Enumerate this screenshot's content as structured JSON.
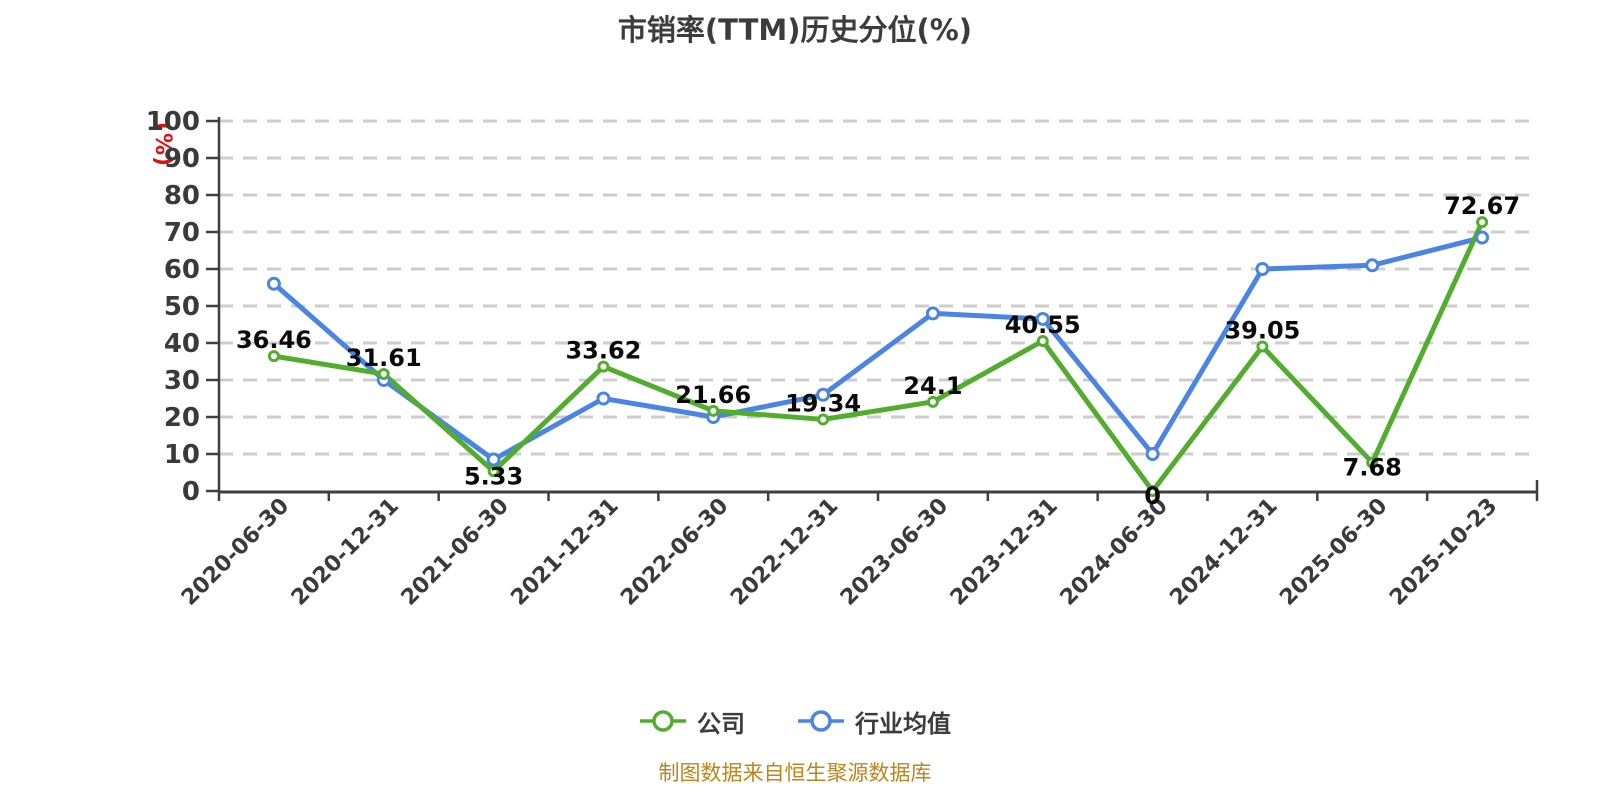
{
  "title": "市销率(TTM)历史分位(%)",
  "footer_note": "制图数据来自恒生聚源数据库",
  "colors": {
    "company": "#52ad2e",
    "industry": "#4a85e2",
    "y_unit_label": "#dd1111",
    "axis": "#3f3f3f",
    "grid": "#cdcdcd",
    "tick_text": "#3a3a3a",
    "data_label": "#0a0a0a",
    "footer": "#bc861b",
    "title_text": "#3c3c3c",
    "background": "#ffffff"
  },
  "chart_data": {
    "type": "line",
    "title": "市销率(TTM)历史分位(%)",
    "xlabel": "",
    "ylabel": "(%)",
    "ylim": [
      0,
      100
    ],
    "y_ticks": [
      0,
      10,
      20,
      30,
      40,
      50,
      60,
      70,
      80,
      90,
      100
    ],
    "grid": "horizontal-dashed",
    "legend_position": "bottom",
    "categories": [
      "2020-06-30",
      "2020-12-31",
      "2021-06-30",
      "2021-12-31",
      "2022-06-30",
      "2022-12-31",
      "2023-06-30",
      "2023-12-31",
      "2024-06-30",
      "2024-12-31",
      "2025-06-30",
      "2025-10-23"
    ],
    "series": [
      {
        "name": "公司",
        "color": "#52ad2e",
        "values": [
          36.46,
          31.61,
          5.33,
          33.62,
          21.66,
          19.34,
          24.1,
          40.55,
          0,
          39.05,
          7.68,
          72.67
        ],
        "point_labels": [
          "36.46",
          "31.61",
          "5.33",
          "33.62",
          "21.66",
          "19.34",
          "24.1",
          "40.55",
          "0",
          "39.05",
          "7.68",
          "72.67"
        ],
        "labels_visible": true,
        "label_below_indices": [
          2,
          8,
          10
        ]
      },
      {
        "name": "行业均值",
        "color": "#4a85e2",
        "values": [
          56,
          30,
          8.5,
          25,
          20,
          26,
          48,
          46.5,
          10,
          60,
          61,
          68.5
        ],
        "labels_visible": false
      }
    ]
  }
}
